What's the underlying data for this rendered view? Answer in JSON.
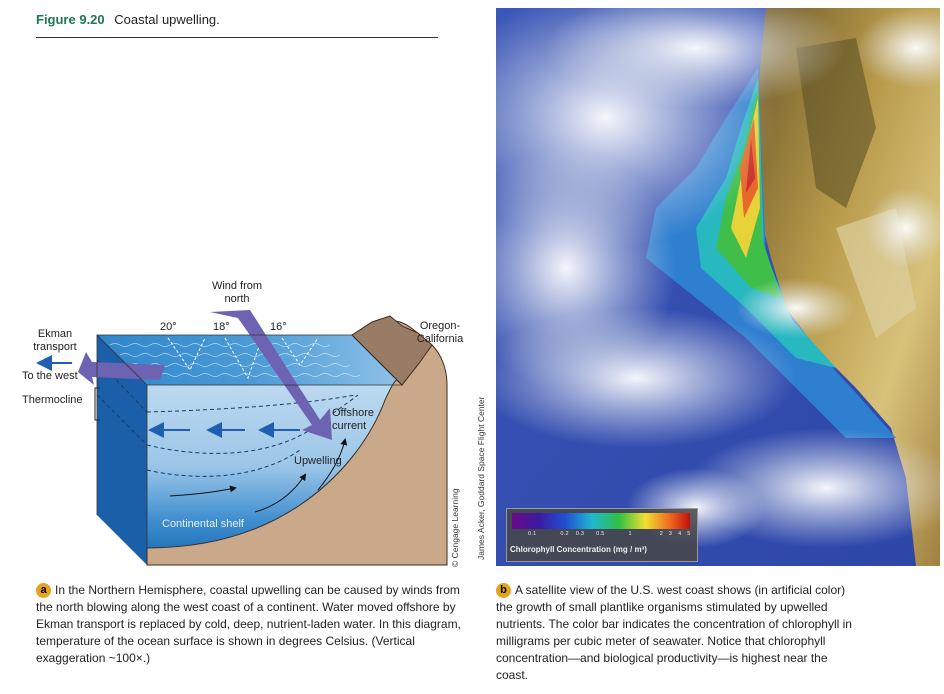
{
  "figure": {
    "number": "Figure 9.20",
    "title": "Coastal upwelling."
  },
  "diagram": {
    "wind_label": "Wind from north",
    "wind_line1": "Wind from",
    "wind_line2": "north",
    "ekman_line1": "Ekman",
    "ekman_line2": "transport",
    "to_west": "To the west",
    "thermocline": "Thermocline",
    "temperatures": [
      "20°",
      "18°",
      "16°"
    ],
    "region_line1": "Oregon-",
    "region_line2": "California",
    "offshore_line1": "Offshore",
    "offshore_line2": "current",
    "upwelling": "Upwelling",
    "shelf": "Continental shelf",
    "credit": "© Cengage Learning",
    "colors": {
      "ocean_surface": "#5aa6d8",
      "ocean_deep": "#1f6fb8",
      "arrow_purple": "#6e63b3",
      "land": "#c8a888"
    }
  },
  "satellite": {
    "credit": "James Acker, Goddard Space Flight Center",
    "colorbar_title": "Chlorophyll Concentration  (mg / m³)",
    "colorbar_ticks": [
      "0.1",
      "0.2",
      "0.3",
      "0.5",
      "1",
      "2",
      "3",
      "4",
      "5"
    ]
  },
  "captions": {
    "a_badge": "a",
    "a_text": "In the Northern Hemisphere, coastal upwelling can be caused by winds from the north blowing along the west coast of a continent. Water moved offshore by Ekman transport is replaced by cold, deep, nutrient-laden water. In this diagram, temperature of the ocean surface is shown in degrees Celsius. (Vertical exaggeration ~100×.)",
    "b_badge": "b",
    "b_text": "A satellite view of the U.S. west coast shows (in artificial color) the growth of small plantlike organisms stimulated by upwelled nutrients. The color bar indicates the concentration of chlorophyll in milligrams per cubic meter of seawater. Notice that chlorophyll concentration—and biological productivity—is highest near the coast."
  }
}
